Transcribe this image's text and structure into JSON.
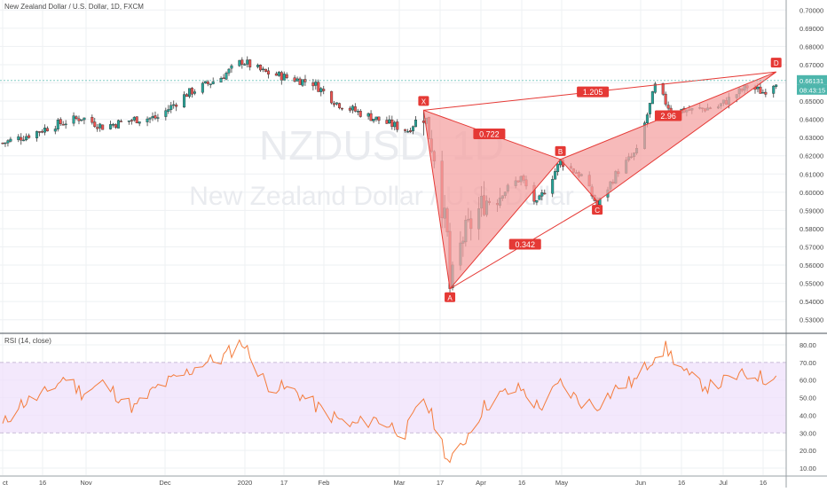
{
  "header": {
    "title": "New Zealand Dollar / U.S. Dollar, 1D, FXCM",
    "watermark_symbol": "NZDUSD, 1D",
    "watermark_name": "New Zealand Dollar / U.S. Dollar"
  },
  "price_axis": {
    "ticks": [
      "0.70000",
      "0.69000",
      "0.68000",
      "0.67000",
      "0.66000",
      "0.65000",
      "0.64000",
      "0.63000",
      "0.62000",
      "0.61000",
      "0.60000",
      "0.59000",
      "0.58000",
      "0.57000",
      "0.56000",
      "0.55000",
      "0.54000",
      "0.53000"
    ],
    "last_price": "0.66131",
    "countdown": "08:43:15"
  },
  "rsi": {
    "label": "RSI (14, close)",
    "ticks": [
      "80.00",
      "70.00",
      "60.00",
      "50.00",
      "40.00",
      "30.00",
      "20.00",
      "10.00"
    ]
  },
  "time_axis": {
    "labels": [
      "ct",
      "16",
      "Nov",
      "Dec",
      "2020",
      "17",
      "Feb",
      "Mar",
      "17",
      "Apr",
      "16",
      "May",
      "Jun",
      "16",
      "Jul",
      "16"
    ]
  },
  "colors": {
    "up": "#26a69a",
    "down": "#ef5350",
    "pattern_fill": "#f4a3a3",
    "pattern_line": "#e53935",
    "rsi_line": "#f47c3c",
    "rsi_band": "#efe0fb",
    "price_line": "#4db6ac"
  },
  "chart_data": [
    {
      "type": "candlestick",
      "title": "New Zealand Dollar / U.S. Dollar, 1D, FXCM",
      "ylim": [
        0.525,
        0.705
      ],
      "x_range": [
        "Oct 2019",
        "Jul 2020"
      ],
      "grid": true,
      "close_path": [
        [
          "2019-10-01",
          0.627
        ],
        [
          "2019-10-10",
          0.631
        ],
        [
          "2019-10-21",
          0.637
        ],
        [
          "2019-10-31",
          0.641
        ],
        [
          "2019-11-08",
          0.636
        ],
        [
          "2019-11-20",
          0.64
        ],
        [
          "2019-11-29",
          0.641
        ],
        [
          "2019-12-10",
          0.654
        ],
        [
          "2019-12-23",
          0.663
        ],
        [
          "2019-12-31",
          0.672
        ],
        [
          "2020-01-08",
          0.666
        ],
        [
          "2020-01-17",
          0.663
        ],
        [
          "2020-01-27",
          0.66
        ],
        [
          "2020-02-05",
          0.649
        ],
        [
          "2020-02-13",
          0.644
        ],
        [
          "2020-02-24",
          0.638
        ],
        [
          "2020-03-03",
          0.634
        ],
        [
          "2020-03-09",
          0.644
        ],
        [
          "2020-03-13",
          0.621
        ],
        [
          "2020-03-18",
          0.575
        ],
        [
          "2020-03-19",
          0.547
        ],
        [
          "2020-03-24",
          0.575
        ],
        [
          "2020-04-01",
          0.595
        ],
        [
          "2020-04-09",
          0.601
        ],
        [
          "2020-04-15",
          0.608
        ],
        [
          "2020-04-21",
          0.593
        ],
        [
          "2020-04-30",
          0.617
        ],
        [
          "2020-05-08",
          0.609
        ],
        [
          "2020-05-14",
          0.593
        ],
        [
          "2020-05-22",
          0.612
        ],
        [
          "2020-05-29",
          0.622
        ],
        [
          "2020-06-05",
          0.658
        ],
        [
          "2020-06-11",
          0.645
        ],
        [
          "2020-06-19",
          0.645
        ],
        [
          "2020-06-29",
          0.647
        ],
        [
          "2020-07-10",
          0.658
        ],
        [
          "2020-07-16",
          0.655
        ],
        [
          "2020-07-21",
          0.661
        ]
      ]
    },
    {
      "type": "harmonic-pattern",
      "points": [
        {
          "name": "X",
          "date": "2020-03-09",
          "price": 0.645
        },
        {
          "name": "A",
          "date": "2020-03-19",
          "price": 0.547
        },
        {
          "name": "B",
          "date": "2020-04-30",
          "price": 0.618
        },
        {
          "name": "C",
          "date": "2020-05-14",
          "price": 0.595
        },
        {
          "name": "D",
          "date": "2020-07-21",
          "price": 0.666
        }
      ],
      "ratios": [
        {
          "label": "1.205",
          "between": "X-D"
        },
        {
          "label": "0.722",
          "between": "X-B"
        },
        {
          "label": "0.342",
          "between": "A-C"
        },
        {
          "label": "2.96",
          "between": "B-D"
        }
      ]
    },
    {
      "type": "line",
      "title": "RSI (14, close)",
      "ylim": [
        5,
        85
      ],
      "band": [
        30,
        70
      ],
      "values": [
        [
          "2019-10-01",
          34
        ],
        [
          "2019-10-07",
          46
        ],
        [
          "2019-10-16",
          51
        ],
        [
          "2019-10-25",
          62
        ],
        [
          "2019-10-31",
          53
        ],
        [
          "2019-11-08",
          58
        ],
        [
          "2019-11-20",
          44
        ],
        [
          "2019-11-29",
          56
        ],
        [
          "2019-12-09",
          63
        ],
        [
          "2019-12-16",
          70
        ],
        [
          "2019-12-23",
          72
        ],
        [
          "2019-12-31",
          82
        ],
        [
          "2020-01-09",
          58
        ],
        [
          "2020-01-21",
          53
        ],
        [
          "2020-01-31",
          42
        ],
        [
          "2020-02-10",
          34
        ],
        [
          "2020-02-20",
          38
        ],
        [
          "2020-03-02",
          30
        ],
        [
          "2020-03-09",
          50
        ],
        [
          "2020-03-13",
          36
        ],
        [
          "2020-03-19",
          12
        ],
        [
          "2020-03-25",
          27
        ],
        [
          "2020-04-01",
          45
        ],
        [
          "2020-04-08",
          52
        ],
        [
          "2020-04-15",
          55
        ],
        [
          "2020-04-22",
          44
        ],
        [
          "2020-04-30",
          58
        ],
        [
          "2020-05-07",
          48
        ],
        [
          "2020-05-14",
          46
        ],
        [
          "2020-05-22",
          56
        ],
        [
          "2020-05-29",
          60
        ],
        [
          "2020-06-05",
          75
        ],
        [
          "2020-06-09",
          78
        ],
        [
          "2020-06-18",
          61
        ],
        [
          "2020-06-26",
          56
        ],
        [
          "2020-07-06",
          62
        ],
        [
          "2020-07-14",
          63
        ],
        [
          "2020-07-17",
          59
        ],
        [
          "2020-07-21",
          66
        ]
      ]
    }
  ]
}
